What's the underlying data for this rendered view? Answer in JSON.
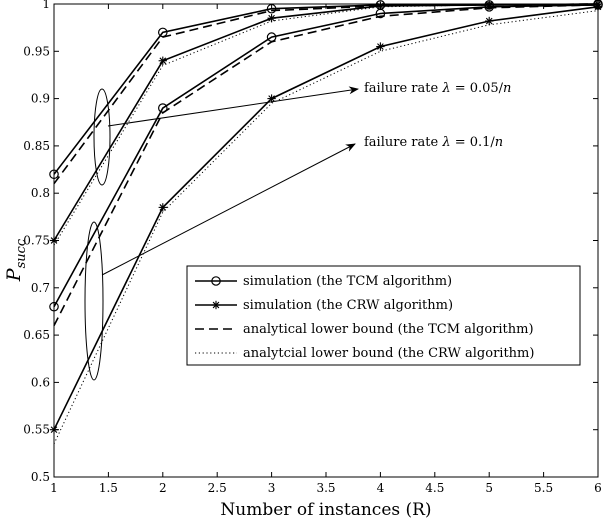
{
  "chart_data": {
    "type": "line",
    "title": "",
    "xlabel": "Number of instances (R)",
    "ylabel": "P_succ",
    "ylabel_main": "P",
    "ylabel_sub": "succ",
    "xlim": [
      1,
      6
    ],
    "ylim": [
      0.5,
      1.0
    ],
    "x_ticks": [
      "1",
      "1.5",
      "2",
      "2.5",
      "3",
      "3.5",
      "4",
      "4.5",
      "5",
      "5.5",
      "6"
    ],
    "y_ticks": [
      "0.5",
      "0.55",
      "0.6",
      "0.65",
      "0.7",
      "0.75",
      "0.8",
      "0.85",
      "0.9",
      "0.95",
      "1"
    ],
    "grid": false,
    "legend_position": "center-right",
    "x": [
      1,
      2,
      3,
      4,
      5,
      6
    ],
    "series": [
      {
        "name": "simulation (the TCM algorithm)",
        "group": "0.05/n",
        "style": "solid",
        "marker": "circle",
        "values": [
          0.82,
          0.97,
          0.995,
          0.999,
          0.999,
          1.0
        ]
      },
      {
        "name": "simulation (the CRW algorithm)",
        "group": "0.05/n",
        "style": "solid",
        "marker": "star",
        "values": [
          0.75,
          0.94,
          0.985,
          0.998,
          0.999,
          1.0
        ]
      },
      {
        "name": "analytical lower bound (the TCM algorithm)",
        "group": "0.05/n",
        "style": "dashed",
        "marker": "none",
        "values": [
          0.81,
          0.965,
          0.993,
          0.998,
          0.999,
          1.0
        ]
      },
      {
        "name": "analytcial lower bound (the CRW algorithm)",
        "group": "0.05/n",
        "style": "dotted",
        "marker": "none",
        "values": [
          0.745,
          0.935,
          0.982,
          0.997,
          0.999,
          1.0
        ]
      },
      {
        "name": "simulation (the TCM algorithm)",
        "group": "0.1/n",
        "style": "solid",
        "marker": "circle",
        "values": [
          0.68,
          0.89,
          0.965,
          0.99,
          0.997,
          0.999
        ]
      },
      {
        "name": "simulation (the CRW algorithm)",
        "group": "0.1/n",
        "style": "solid",
        "marker": "star",
        "values": [
          0.55,
          0.785,
          0.9,
          0.955,
          0.982,
          0.997
        ]
      },
      {
        "name": "analytical lower bound (the TCM algorithm)",
        "group": "0.1/n",
        "style": "dashed",
        "marker": "none",
        "values": [
          0.66,
          0.885,
          0.96,
          0.987,
          0.996,
          0.999
        ]
      },
      {
        "name": "analytcial lower bound (the CRW algorithm)",
        "group": "0.1/n",
        "style": "dotted",
        "marker": "none",
        "values": [
          0.535,
          0.78,
          0.895,
          0.95,
          0.978,
          0.993
        ]
      }
    ],
    "legend": [
      {
        "label": "simulation (the TCM algorithm)",
        "style": "solid",
        "marker": "circle"
      },
      {
        "label": "simulation (the CRW algorithm)",
        "style": "solid",
        "marker": "star"
      },
      {
        "label": "analytical lower bound (the TCM algorithm)",
        "style": "dashed",
        "marker": "none"
      },
      {
        "label": "analytcial lower bound (the CRW algorithm)",
        "style": "dotted",
        "marker": "none"
      }
    ],
    "annotations": [
      {
        "prefix": "failure rate ",
        "lambda": "λ",
        "value": " = 0.05/",
        "n": "n"
      },
      {
        "prefix": "failure rate ",
        "lambda": "λ",
        "value": " = 0.1/",
        "n": "n"
      }
    ]
  }
}
